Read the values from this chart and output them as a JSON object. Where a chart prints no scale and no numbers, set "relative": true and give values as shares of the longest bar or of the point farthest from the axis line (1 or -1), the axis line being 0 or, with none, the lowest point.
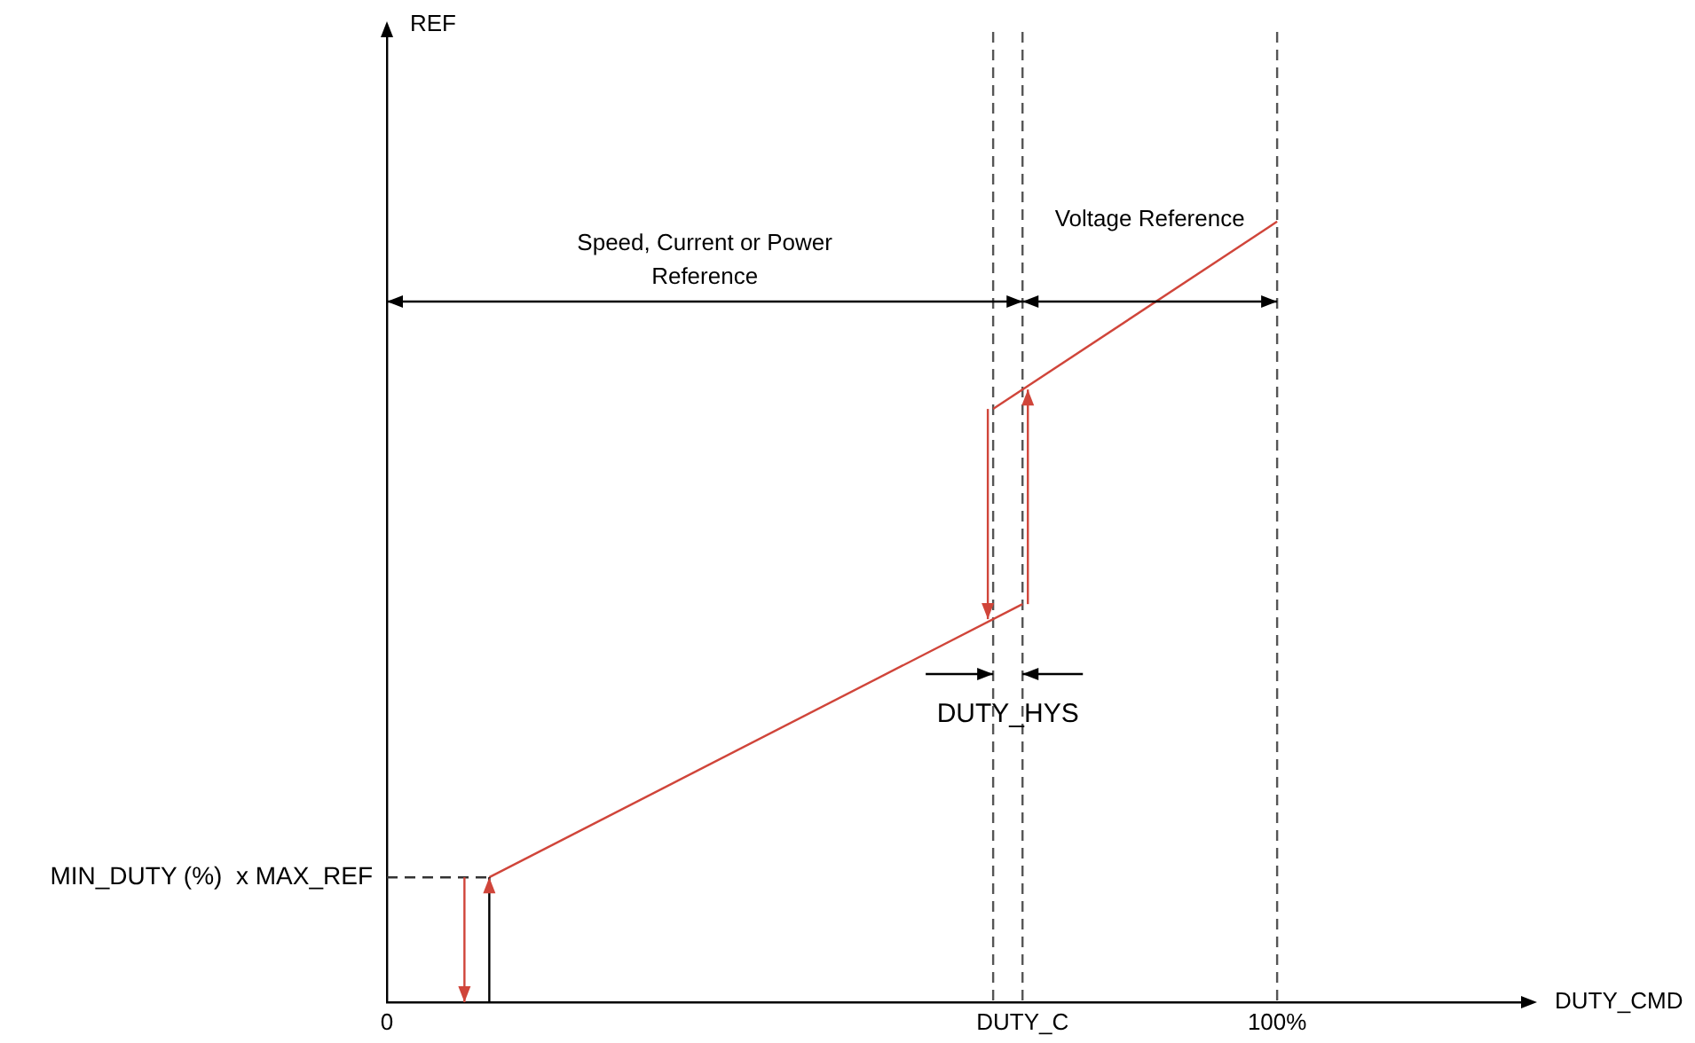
{
  "chart_data": {
    "type": "line",
    "relative": true,
    "xlabel": "DUTY_CMD",
    "xlim": [
      0,
      128
    ],
    "xticks": [
      0,
      {
        "value": 71.4,
        "label": "DUTY_C"
      },
      {
        "value": 100,
        "label": "100%"
      }
    ],
    "series": [
      {
        "color": "#d0453a",
        "x": [
          11.5,
          71.4
        ],
        "values": [
          0.16,
          0.51
        ]
      },
      {
        "color": "#d0453a",
        "x": [
          68.1,
          100
        ],
        "values": [
          0.76,
          1
        ]
      }
    ],
    "ref_lines": [
      {
        "axis": "x",
        "value": 68.1,
        "color": "#555555",
        "line_style": "dashed"
      },
      {
        "axis": "x",
        "value": 71.4,
        "color": "#555555",
        "line_style": "dashed"
      },
      {
        "axis": "x",
        "value": 100,
        "color": "#555555",
        "line_style": "dashed"
      },
      {
        "axis": "y",
        "value": 0.16,
        "label": "MIN_DUTY (%)  x MAX_REF",
        "color": "#333333",
        "line_style": "dashed"
      }
    ],
    "annotations": [
      "Speed, Current or Power Reference",
      "Voltage Reference",
      "DUTY_HYS",
      "REF"
    ],
    "grid": false,
    "legend": false,
    "marker": "none",
    "line_style": "solid"
  }
}
